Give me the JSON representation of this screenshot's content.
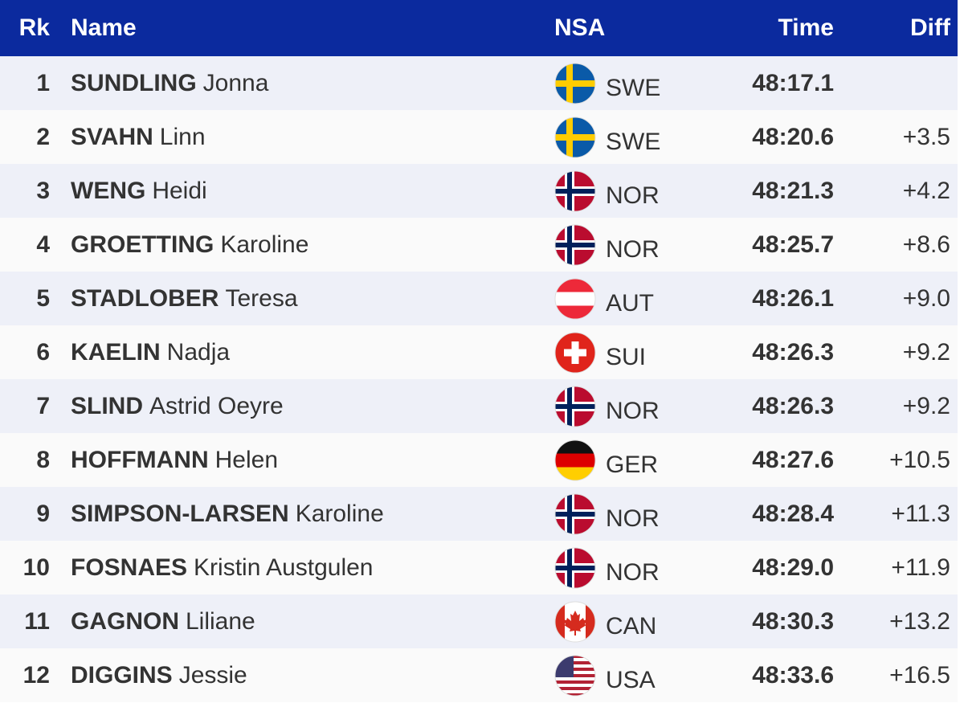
{
  "header": {
    "rank": "Rk",
    "name": "Name",
    "nsa": "NSA",
    "time": "Time",
    "diff": "Diff"
  },
  "rows": [
    {
      "rank": 1,
      "surname": "SUNDLING",
      "given_name": "Jonna",
      "nsa": "SWE",
      "time": "48:17.1"
    },
    {
      "rank": 2,
      "surname": "SVAHN",
      "given_name": "Linn",
      "nsa": "SWE",
      "time": "48:20.6",
      "diff": "+3.5"
    },
    {
      "rank": 3,
      "surname": "WENG",
      "given_name": "Heidi",
      "nsa": "NOR",
      "time": "48:21.3",
      "diff": "+4.2"
    },
    {
      "rank": 4,
      "surname": "GROETTING",
      "given_name": "Karoline",
      "nsa": "NOR",
      "time": "48:25.7",
      "diff": "+8.6"
    },
    {
      "rank": 5,
      "surname": "STADLOBER",
      "given_name": "Teresa",
      "nsa": "AUT",
      "time": "48:26.1",
      "diff": "+9.0"
    },
    {
      "rank": 6,
      "surname": "KAELIN",
      "given_name": "Nadja",
      "nsa": "SUI",
      "time": "48:26.3",
      "diff": "+9.2"
    },
    {
      "rank": 7,
      "surname": "SLIND",
      "given_name": "Astrid Oeyre",
      "nsa": "NOR",
      "time": "48:26.3",
      "diff": "+9.2"
    },
    {
      "rank": 8,
      "surname": "HOFFMANN",
      "given_name": "Helen",
      "nsa": "GER",
      "time": "48:27.6",
      "diff": "+10.5"
    },
    {
      "rank": 9,
      "surname": "SIMPSON-LARSEN",
      "given_name": "Karoline",
      "nsa": "NOR",
      "time": "48:28.4",
      "diff": "+11.3"
    },
    {
      "rank": 10,
      "surname": "FOSNAES",
      "given_name": "Kristin Austgulen",
      "nsa": "NOR",
      "time": "48:29.0",
      "diff": "+11.9"
    },
    {
      "rank": 11,
      "surname": "GAGNON",
      "given_name": "Liliane",
      "nsa": "CAN",
      "time": "48:30.3",
      "diff": "+13.2"
    },
    {
      "rank": 12,
      "surname": "DIGGINS",
      "given_name": "Jessie",
      "nsa": "USA",
      "time": "48:33.6",
      "diff": "+16.5"
    }
  ]
}
